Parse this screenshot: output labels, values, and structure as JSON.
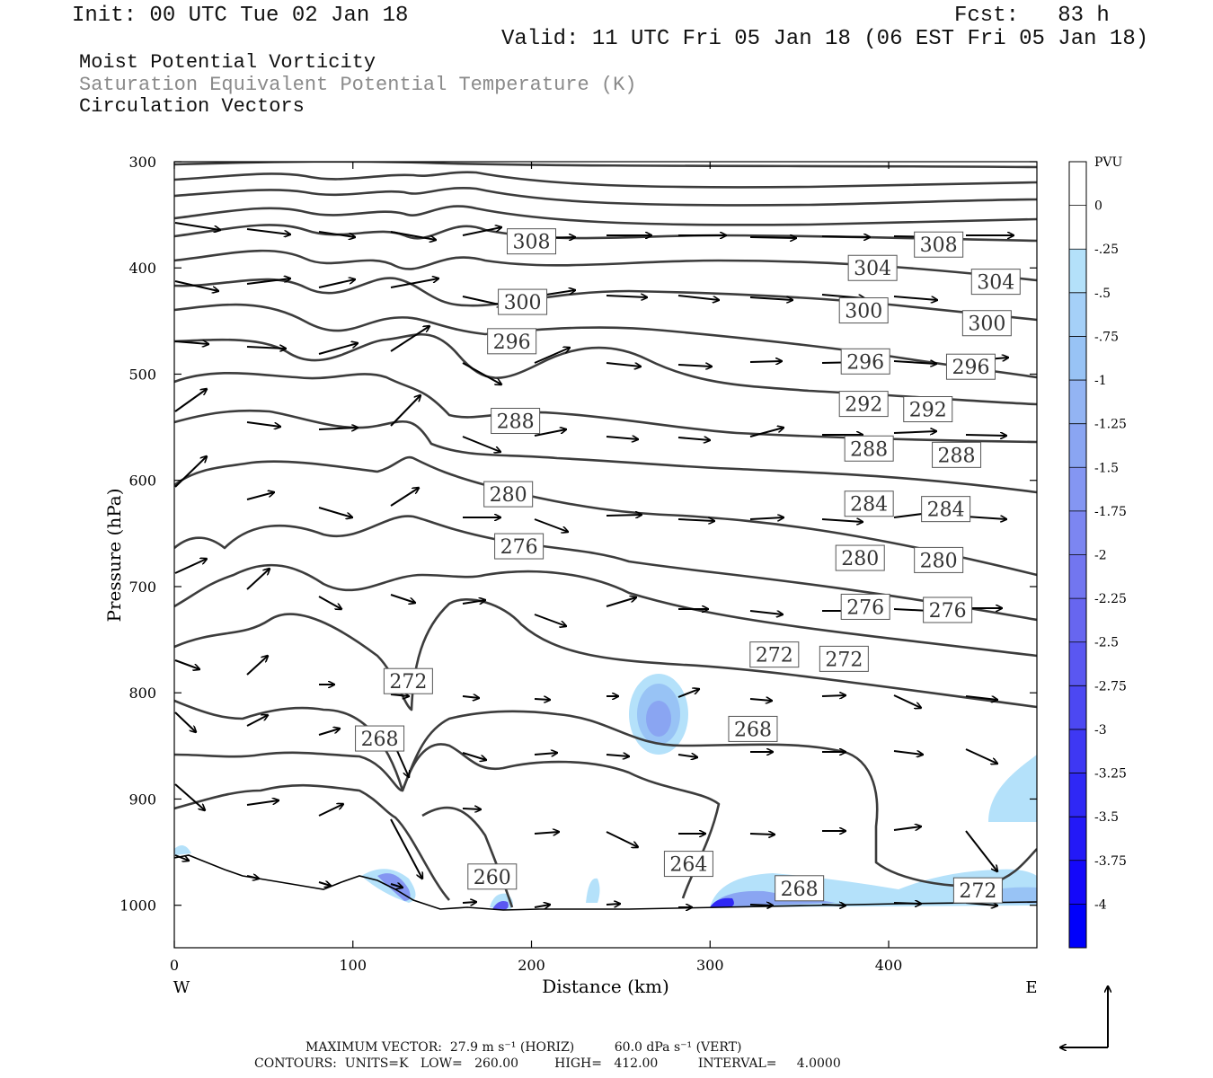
{
  "header": {
    "init": "Init: 00 UTC Tue 02 Jan 18",
    "fcst": "Fcst:   83 h",
    "valid": "Valid: 11 UTC Fri 05 Jan 18 (06 EST Fri 05 Jan 18)"
  },
  "fields": {
    "f1": "Moist Potential Vorticity",
    "f2": "Saturation Equivalent Potential Temperature (K)",
    "f3": "Circulation Vectors"
  },
  "footer": {
    "line1": "MAXIMUM VECTOR:  27.9 m s⁻¹ (HORIZ)          60.0 dPa s⁻¹ (VERT)",
    "line2": "CONTOURS:  UNITS=K   LOW=   260.00         HIGH=   412.00          INTERVAL=     4.0000"
  },
  "colors": {
    "contour": "#3c3c3c",
    "vector": "#000000",
    "frame": "#000000"
  },
  "chart_data": {
    "type": "contour",
    "ylabel": "Pressure (hPa)",
    "xlabel": "Distance (km)",
    "x_end_labels": {
      "left": "W",
      "right": "E"
    },
    "xlim": [
      0,
      483
    ],
    "ylim": [
      1040,
      300
    ],
    "xticks": [
      0,
      100,
      200,
      300,
      400
    ],
    "yticks": [
      300,
      400,
      500,
      600,
      700,
      800,
      900,
      1000
    ],
    "colorbar": {
      "unit": "PVU",
      "levels": [
        "0",
        "-.25",
        "-.5",
        "-.75",
        "-1",
        "-1.25",
        "-1.5",
        "-1.75",
        "-2",
        "-2.25",
        "-2.5",
        "-2.75",
        "-3",
        "-3.25",
        "-3.5",
        "-3.75",
        "-4"
      ],
      "colors": [
        "#ffffff",
        "#ffffff",
        "#b4e1fa",
        "#a5d0f8",
        "#98c3f5",
        "#93b4f3",
        "#8aa5f2",
        "#8496f2",
        "#7c86f1",
        "#7276f0",
        "#6766f0",
        "#5a57f1",
        "#4c48f2",
        "#3e38f3",
        "#2f28f5",
        "#2319f7",
        "#1408fa",
        "#0000fb"
      ]
    },
    "contour_labels": [
      {
        "text": "308",
        "x": 200,
        "p": 375
      },
      {
        "text": "308",
        "x": 428,
        "p": 378
      },
      {
        "text": "304",
        "x": 391,
        "p": 400
      },
      {
        "text": "304",
        "x": 460,
        "p": 413
      },
      {
        "text": "300",
        "x": 195,
        "p": 432
      },
      {
        "text": "300",
        "x": 386,
        "p": 440
      },
      {
        "text": "300",
        "x": 455,
        "p": 452
      },
      {
        "text": "296",
        "x": 189,
        "p": 469
      },
      {
        "text": "296",
        "x": 387,
        "p": 488
      },
      {
        "text": "296",
        "x": 446,
        "p": 493
      },
      {
        "text": "292",
        "x": 386,
        "p": 528
      },
      {
        "text": "292",
        "x": 422,
        "p": 533
      },
      {
        "text": "288",
        "x": 191,
        "p": 544
      },
      {
        "text": "288",
        "x": 389,
        "p": 570
      },
      {
        "text": "288",
        "x": 438,
        "p": 576
      },
      {
        "text": "284",
        "x": 389,
        "p": 622
      },
      {
        "text": "284",
        "x": 432,
        "p": 627
      },
      {
        "text": "280",
        "x": 187,
        "p": 613
      },
      {
        "text": "280",
        "x": 384,
        "p": 673
      },
      {
        "text": "280",
        "x": 428,
        "p": 675
      },
      {
        "text": "276",
        "x": 193,
        "p": 662
      },
      {
        "text": "276",
        "x": 387,
        "p": 719
      },
      {
        "text": "276",
        "x": 433,
        "p": 722
      },
      {
        "text": "272",
        "x": 131,
        "p": 789
      },
      {
        "text": "272",
        "x": 336,
        "p": 764
      },
      {
        "text": "272",
        "x": 375,
        "p": 768
      },
      {
        "text": "268",
        "x": 115,
        "p": 843
      },
      {
        "text": "268",
        "x": 324,
        "p": 834
      },
      {
        "text": "268",
        "x": 350,
        "p": 984
      },
      {
        "text": "272",
        "x": 450,
        "p": 986
      },
      {
        "text": "264",
        "x": 288,
        "p": 961
      },
      {
        "text": "260",
        "x": 178,
        "p": 973
      }
    ]
  }
}
